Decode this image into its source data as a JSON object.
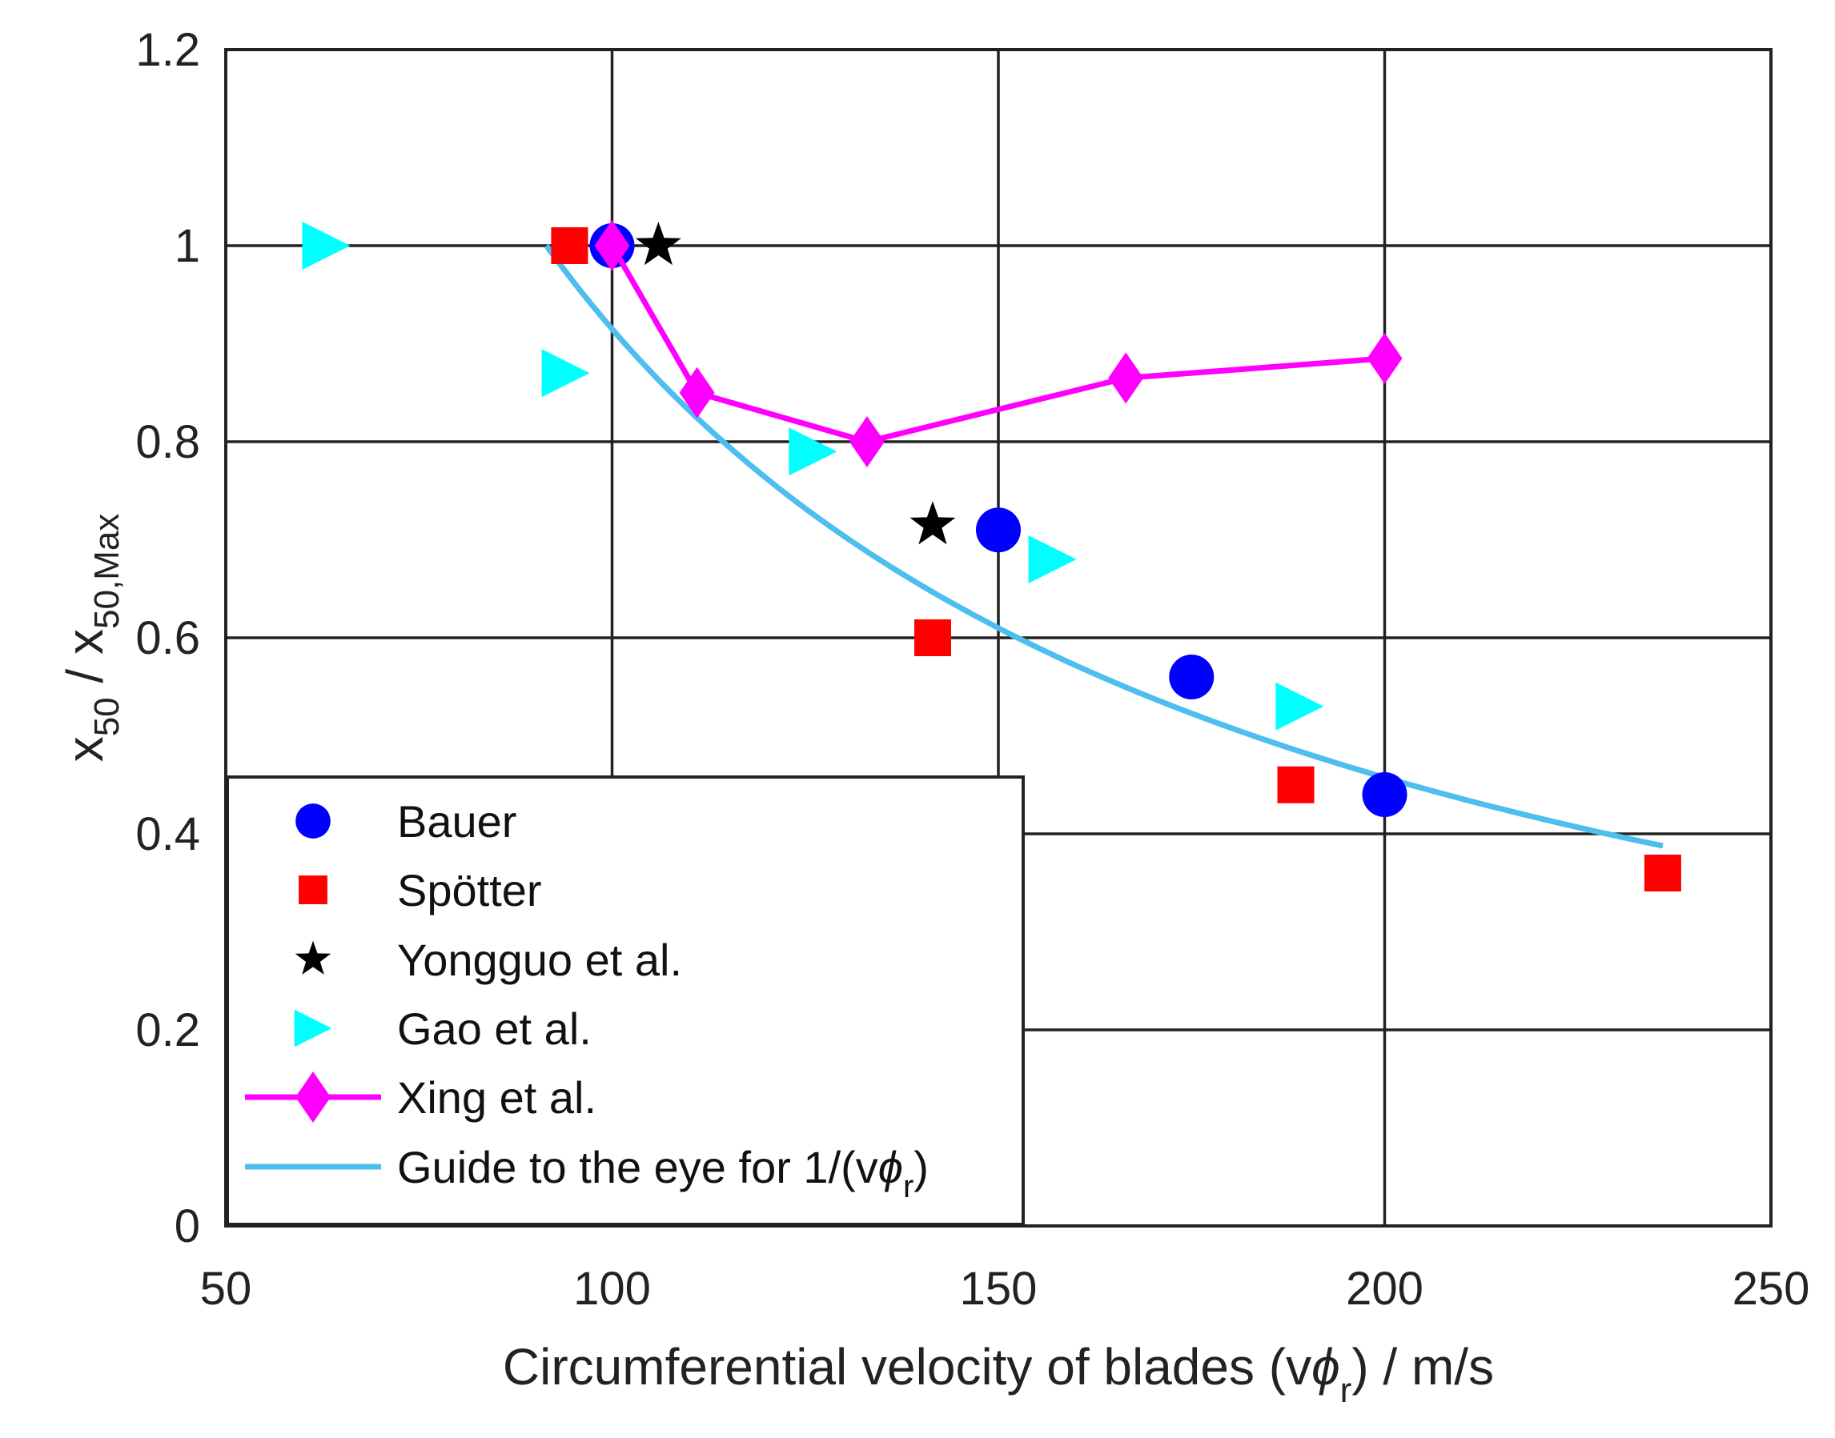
{
  "chart_data": {
    "type": "scatter",
    "xlabel": "Circumferential velocity of blades (vϕr) / m/s",
    "xlabel_parts": [
      "Circumferential velocity of blades (v",
      "ϕ",
      "r",
      ") / m/s"
    ],
    "ylabel": "x50 / x50,Max",
    "ylabel_parts": [
      "x",
      "50",
      " / x",
      "50,Max"
    ],
    "xlim": [
      50,
      250
    ],
    "ylim": [
      0,
      1.2
    ],
    "xticks": [
      50,
      100,
      150,
      200,
      250
    ],
    "yticks": [
      0,
      0.2,
      0.4,
      0.6,
      0.8,
      1,
      1.2
    ],
    "xtick_labels": [
      "50",
      "100",
      "150",
      "200",
      "250"
    ],
    "ytick_labels": [
      "0",
      "0.2",
      "0.4",
      "0.6",
      "0.8",
      "1",
      "1.2"
    ],
    "grid": true,
    "legend_position": "bottom-left",
    "series": [
      {
        "name": "Bauer",
        "marker": "circle",
        "color": "#0000ff",
        "line": false,
        "x": [
          100,
          150,
          175,
          200
        ],
        "y": [
          1.0,
          0.71,
          0.56,
          0.44
        ]
      },
      {
        "name": "Spötter",
        "marker": "square",
        "color": "#ff0000",
        "line": false,
        "x": [
          94.5,
          141.5,
          188.5,
          236
        ],
        "y": [
          1.0,
          0.6,
          0.45,
          0.36
        ]
      },
      {
        "name": "Yongguo et al.",
        "marker": "star",
        "color": "#000000",
        "line": false,
        "x": [
          106,
          141.5
        ],
        "y": [
          1.0,
          0.715
        ]
      },
      {
        "name": "Gao et al.",
        "marker": "triangle-right",
        "color": "#00ffff",
        "line": false,
        "x": [
          63,
          94,
          126,
          157,
          189
        ],
        "y": [
          1.0,
          0.87,
          0.79,
          0.68,
          0.53
        ]
      },
      {
        "name": "Xing et al.",
        "marker": "diamond",
        "color": "#ff00ff",
        "line": true,
        "x": [
          100,
          111,
          133,
          166.5,
          200
        ],
        "y": [
          1.0,
          0.85,
          0.8,
          0.865,
          0.885
        ]
      },
      {
        "name": "Guide to the eye for 1/(vϕr)",
        "marker": "none",
        "color": "#4dbeee",
        "line": true,
        "label_parts": [
          "Guide to the eye for 1/(v",
          "ϕ",
          "r",
          ")"
        ],
        "function": "y = 91.5 / x",
        "x_range": [
          91.5,
          236
        ]
      }
    ]
  }
}
